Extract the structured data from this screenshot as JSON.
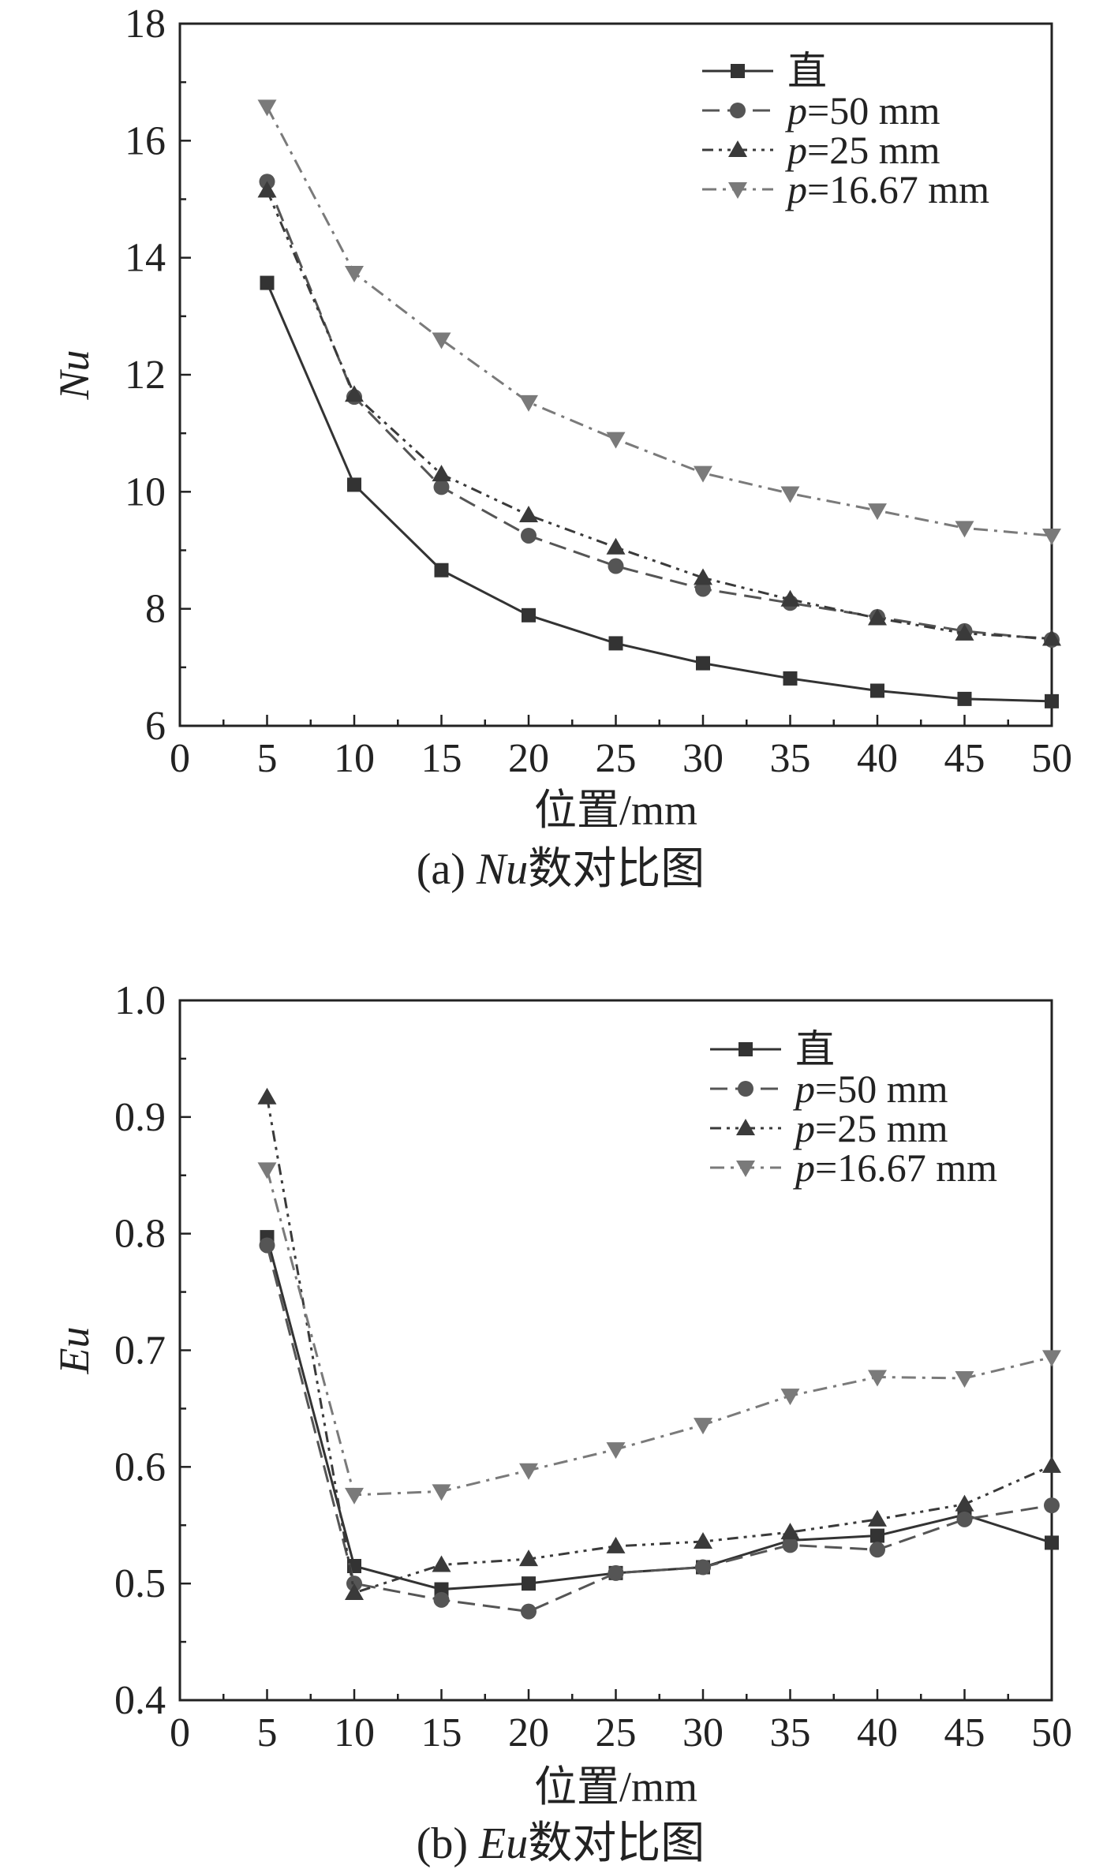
{
  "chart_data": [
    {
      "type": "line",
      "caption_prefix": "(a) ",
      "caption_var": "Nu",
      "caption_suffix": "数对比图",
      "xlabel": "位置/mm",
      "ylabel": "Nu",
      "xlim": [
        0,
        50
      ],
      "ylim": [
        6,
        18
      ],
      "xticks": [
        0,
        5,
        10,
        15,
        20,
        25,
        30,
        35,
        40,
        45,
        50
      ],
      "yticks": [
        6,
        8,
        10,
        12,
        14,
        16,
        18
      ],
      "x": [
        5,
        10,
        15,
        20,
        25,
        30,
        35,
        40,
        45,
        50
      ],
      "legend_position": "top-right",
      "series": [
        {
          "name": "直",
          "label_var": "",
          "label_rest": "直",
          "marker": "square",
          "dash": "solid",
          "color": "#333333",
          "values": [
            13.57,
            10.12,
            8.66,
            7.89,
            7.41,
            7.07,
            6.81,
            6.6,
            6.46,
            6.42
          ]
        },
        {
          "name": "p=50 mm",
          "label_var": "p",
          "label_rest": "=50 mm",
          "marker": "circle",
          "dash": "dash",
          "color": "#555555",
          "values": [
            15.3,
            11.62,
            10.08,
            9.25,
            8.73,
            8.34,
            8.1,
            7.86,
            7.62,
            7.47
          ]
        },
        {
          "name": "p=25 mm",
          "label_var": "p",
          "label_rest": "=25 mm",
          "marker": "triangle-up",
          "dash": "dashdotdot",
          "color": "#3a3a3a",
          "values": [
            15.15,
            11.66,
            10.3,
            9.6,
            9.05,
            8.53,
            8.16,
            7.84,
            7.58,
            7.49
          ]
        },
        {
          "name": "p=16.67 mm",
          "label_var": "p",
          "label_rest": "=16.67 mm",
          "marker": "triangle-down",
          "dash": "dashdot",
          "color": "#7a7a7a",
          "values": [
            16.58,
            13.74,
            12.6,
            11.53,
            10.9,
            10.32,
            9.97,
            9.68,
            9.38,
            9.25
          ]
        }
      ]
    },
    {
      "type": "line",
      "caption_prefix": "(b) ",
      "caption_var": "Eu",
      "caption_suffix": "数对比图",
      "xlabel": "位置/mm",
      "ylabel": "Eu",
      "xlim": [
        0,
        50
      ],
      "ylim": [
        0.4,
        1.0
      ],
      "xticks": [
        0,
        5,
        10,
        15,
        20,
        25,
        30,
        35,
        40,
        45,
        50
      ],
      "yticks": [
        0.4,
        0.5,
        0.6,
        0.7,
        0.8,
        0.9,
        1.0
      ],
      "x": [
        5,
        10,
        15,
        20,
        25,
        30,
        35,
        40,
        45,
        50
      ],
      "legend_position": "top-right",
      "series": [
        {
          "name": "直",
          "label_var": "",
          "label_rest": "直",
          "marker": "square",
          "dash": "solid",
          "color": "#333333",
          "values": [
            0.797,
            0.515,
            0.495,
            0.5,
            0.509,
            0.514,
            0.537,
            0.541,
            0.559,
            0.535
          ]
        },
        {
          "name": "p=50 mm",
          "label_var": "p",
          "label_rest": "=50 mm",
          "marker": "circle",
          "dash": "dash",
          "color": "#555555",
          "values": [
            0.79,
            0.5,
            0.486,
            0.476,
            0.509,
            0.514,
            0.533,
            0.529,
            0.555,
            0.567
          ]
        },
        {
          "name": "p=25 mm",
          "label_var": "p",
          "label_rest": "=25 mm",
          "marker": "triangle-up",
          "dash": "dashdotdot",
          "color": "#3a3a3a",
          "values": [
            0.917,
            0.492,
            0.516,
            0.521,
            0.532,
            0.536,
            0.544,
            0.555,
            0.568,
            0.601
          ]
        },
        {
          "name": "p=16.67 mm",
          "label_var": "p",
          "label_rest": "=16.67 mm",
          "marker": "triangle-down",
          "dash": "dashdot",
          "color": "#7a7a7a",
          "values": [
            0.855,
            0.576,
            0.579,
            0.597,
            0.615,
            0.636,
            0.661,
            0.677,
            0.676,
            0.694
          ]
        }
      ]
    }
  ]
}
